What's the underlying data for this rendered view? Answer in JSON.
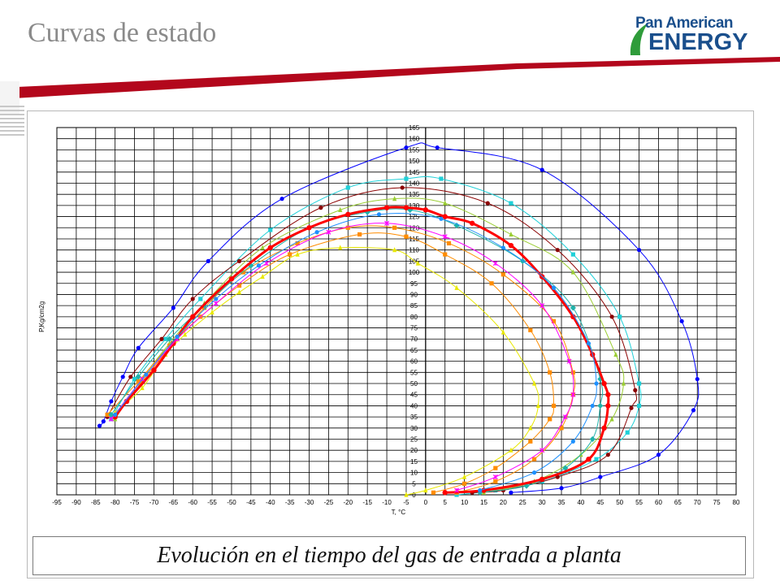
{
  "header": {
    "title": "Curvas de estado",
    "logo_line1": "Pan American",
    "logo_line2": "ENERGY",
    "logo_color": "#1a4f8c",
    "banner_color": "#b3071c"
  },
  "caption": "Evolución en el tiempo del gas de entrada a planta",
  "chart_data": {
    "type": "line",
    "xlabel": "T, °C",
    "ylabel": "P,Kg/cm2g",
    "xlim": [
      -95,
      80
    ],
    "ylim": [
      0,
      165
    ],
    "xticks": [
      "-95",
      "-90",
      "-85",
      "-80",
      "-75",
      "-70",
      "-65",
      "-60",
      "-55",
      "-50",
      "-45",
      "-40",
      "-35",
      "-30",
      "-25",
      "-20",
      "-15",
      "-10",
      "-5",
      "0",
      "5",
      "10",
      "15",
      "20",
      "25",
      "30",
      "35",
      "40",
      "45",
      "50",
      "55",
      "60",
      "65",
      "70",
      "75",
      "80"
    ],
    "yticks": [
      "0",
      "5",
      "10",
      "15",
      "20",
      "25",
      "30",
      "35",
      "40",
      "45",
      "50",
      "55",
      "60",
      "65",
      "70",
      "75",
      "80",
      "85",
      "90",
      "95",
      "100",
      "105",
      "110",
      "115",
      "120",
      "125",
      "130",
      "135",
      "140",
      "145",
      "150",
      "155",
      "160",
      "165"
    ],
    "grid": true,
    "legend": "none",
    "series": [
      {
        "color": "#0000ff",
        "marker": "circle",
        "lw": 1,
        "x": [
          -84,
          -83,
          -81,
          -78,
          -74,
          -65,
          -56,
          -37,
          -5,
          3,
          30,
          55,
          66,
          70,
          69,
          60,
          45,
          35,
          22
        ],
        "y": [
          31,
          33,
          42,
          53,
          66,
          84,
          105,
          133,
          156,
          156,
          146,
          110,
          78,
          52,
          38,
          18,
          8,
          3,
          1
        ]
      },
      {
        "color": "#1fd0d8",
        "marker": "square",
        "lw": 1,
        "x": [
          -81,
          -75,
          -67,
          -58,
          -40,
          -20,
          -5,
          4,
          22,
          38,
          50,
          55,
          55,
          52,
          44,
          30,
          18,
          8
        ],
        "y": [
          34,
          52,
          70,
          88,
          119,
          138,
          142,
          142,
          131,
          108,
          80,
          50,
          40,
          28,
          16,
          6,
          2,
          0
        ]
      },
      {
        "color": "#8b0000",
        "marker": "circle",
        "lw": 1,
        "x": [
          -82,
          -76,
          -68,
          -60,
          -48,
          -27,
          -6,
          16,
          34,
          48,
          54,
          53,
          47,
          34,
          20,
          12
        ],
        "y": [
          35,
          53,
          70,
          88,
          105,
          129,
          138,
          131,
          110,
          80,
          47,
          39,
          18,
          8,
          2,
          1
        ]
      },
      {
        "color": "#9acd32",
        "marker": "triangle",
        "lw": 1,
        "x": [
          -80,
          -74,
          -66,
          -57,
          -42,
          -22,
          -8,
          5,
          22,
          38,
          49,
          51,
          48,
          40,
          28,
          15
        ],
        "y": [
          34,
          50,
          68,
          86,
          111,
          128,
          133,
          131,
          117,
          100,
          63,
          50,
          34,
          18,
          6,
          1
        ]
      },
      {
        "color": "#e8e800",
        "marker": "triangle",
        "lw": 1,
        "x": [
          -80,
          -73,
          -67,
          -62,
          -55,
          -48,
          -42,
          -33,
          -22,
          -8,
          -2,
          8,
          20,
          28,
          29,
          27,
          22,
          10,
          0,
          -5
        ],
        "y": [
          37,
          48,
          63,
          72,
          82,
          91,
          98,
          108,
          111,
          110,
          104,
          93,
          73,
          50,
          40,
          30,
          20,
          8,
          2,
          0
        ]
      },
      {
        "color": "#ff8c00",
        "marker": "square",
        "lw": 1,
        "x": [
          -82,
          -74,
          -66,
          -58,
          -48,
          -35,
          -17,
          -5,
          5,
          17,
          27,
          32,
          33,
          32,
          27,
          18,
          10,
          2
        ],
        "y": [
          36,
          51,
          67,
          80,
          94,
          108,
          117,
          116,
          108,
          95,
          74,
          55,
          40,
          34,
          24,
          12,
          5,
          1
        ]
      },
      {
        "color": "#ff8c00",
        "marker": "square",
        "lw": 1,
        "x": [
          -80,
          -73,
          -65,
          -57,
          -47,
          -33,
          -20,
          -8,
          6,
          20,
          33,
          38,
          38,
          35,
          28,
          18,
          8
        ],
        "y": [
          35,
          51,
          68,
          84,
          100,
          113,
          120,
          120,
          113,
          99,
          78,
          55,
          45,
          30,
          16,
          6,
          1
        ]
      },
      {
        "color": "#20b2aa",
        "marker": "diamond",
        "lw": 1,
        "x": [
          -81,
          -74,
          -66,
          -57,
          -45,
          -30,
          -15,
          -4,
          8,
          25,
          38,
          45,
          45,
          43,
          36,
          26,
          14
        ],
        "y": [
          36,
          53,
          70,
          85,
          103,
          120,
          127,
          128,
          121,
          105,
          84,
          52,
          40,
          25,
          12,
          4,
          1
        ]
      },
      {
        "color": "#ff0000",
        "marker": "circle",
        "lw": 3,
        "x": [
          -80,
          -77,
          -70,
          -65,
          -60,
          -50,
          -40,
          -30,
          -20,
          -10,
          -5,
          0,
          5,
          12,
          22,
          30,
          38,
          43,
          46,
          47,
          47,
          46,
          42,
          30,
          15,
          5
        ],
        "y": [
          35,
          42,
          56,
          68,
          80,
          97,
          111,
          120,
          126,
          129,
          129,
          128,
          125,
          122,
          112,
          98,
          80,
          63,
          50,
          45,
          40,
          30,
          16,
          7,
          2,
          1
        ]
      },
      {
        "color": "#ff00ff",
        "marker": "asterisk",
        "lw": 1,
        "x": [
          -81,
          -73,
          -64,
          -54,
          -41,
          -25,
          -10,
          5,
          18,
          30,
          37,
          38,
          36,
          30,
          18,
          8
        ],
        "y": [
          34,
          52,
          70,
          86,
          104,
          118,
          122,
          116,
          104,
          85,
          60,
          45,
          35,
          20,
          8,
          2
        ]
      },
      {
        "color": "#1e90ff",
        "marker": "circle",
        "lw": 1,
        "x": [
          -80,
          -72,
          -64,
          -54,
          -43,
          -28,
          -12,
          4,
          20,
          33,
          42,
          44,
          43,
          38,
          28,
          14
        ],
        "y": [
          36,
          54,
          71,
          88,
          103,
          118,
          126,
          124,
          111,
          93,
          68,
          50,
          40,
          24,
          10,
          2
        ]
      }
    ]
  }
}
